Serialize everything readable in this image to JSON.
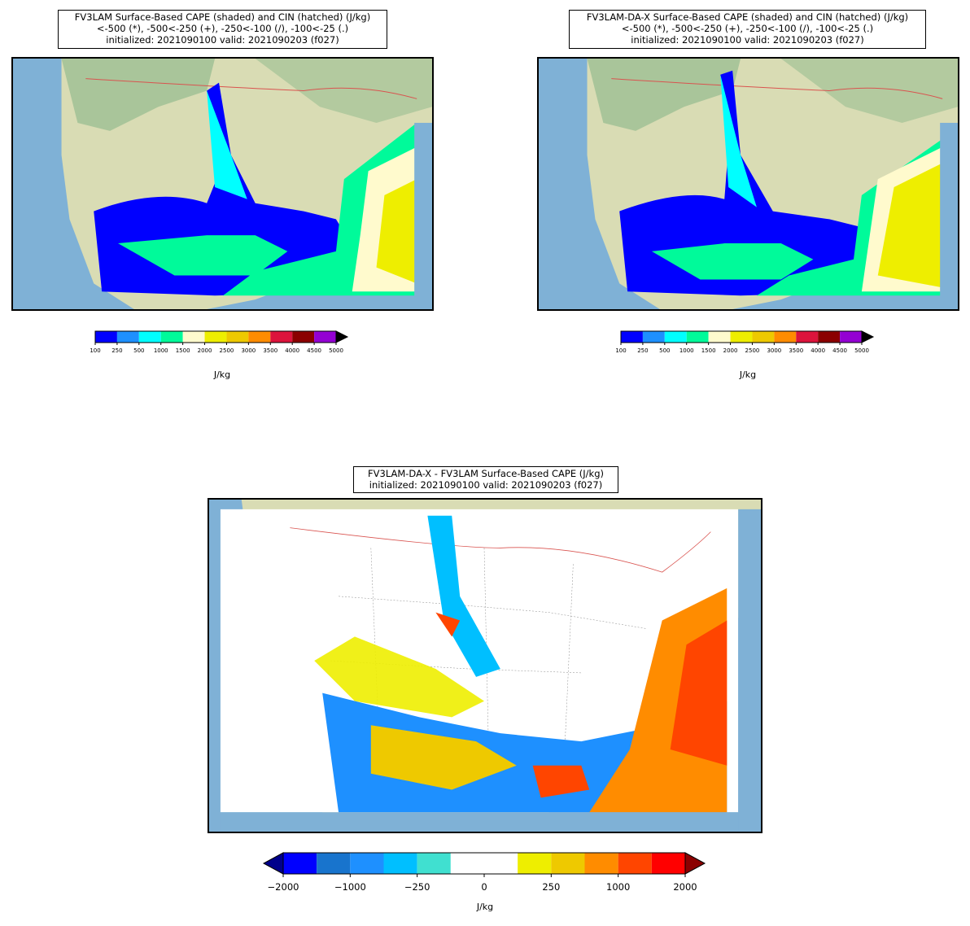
{
  "panels": {
    "left": {
      "title_lines": [
        "FV3LAM Surface-Based CAPE (shaded) and CIN (hatched) (J/kg)",
        "<-500 (*), -500<-250 (+), -250<-100 (/), -100<-25 (.)",
        "initialized: 2021090100 valid: 2021090203 (f027)"
      ],
      "colorbar": {
        "ticks": [
          "100",
          "250",
          "500",
          "1000",
          "1500",
          "2000",
          "2500",
          "3000",
          "3500",
          "4000",
          "4500",
          "5000"
        ],
        "colors": [
          "#0000ff",
          "#1e90ff",
          "#00ffff",
          "#00fa9a",
          "#fffacd",
          "#eeee00",
          "#eec900",
          "#ff8c00",
          "#dc143c",
          "#8b0000",
          "#9400d3"
        ],
        "extend_color": "#000000",
        "unit": "J/kg"
      }
    },
    "right": {
      "title_lines": [
        "FV3LAM-DA-X Surface-Based CAPE (shaded) and CIN (hatched) (J/kg)",
        "<-500 (*), -500<-250 (+), -250<-100 (/), -100<-25 (.)",
        "initialized: 2021090100 valid: 2021090203 (f027)"
      ],
      "colorbar": {
        "ticks": [
          "100",
          "250",
          "500",
          "1000",
          "1500",
          "2000",
          "2500",
          "3000",
          "3500",
          "4000",
          "4500",
          "5000"
        ],
        "colors": [
          "#0000ff",
          "#1e90ff",
          "#00ffff",
          "#00fa9a",
          "#fffacd",
          "#eeee00",
          "#eec900",
          "#ff8c00",
          "#dc143c",
          "#8b0000",
          "#9400d3"
        ],
        "extend_color": "#000000",
        "unit": "J/kg"
      }
    },
    "diff": {
      "title_lines": [
        "FV3LAM-DA-X - FV3LAM Surface-Based CAPE (J/kg)",
        "initialized: 2021090100 valid: 2021090203 (f027)"
      ],
      "colorbar": {
        "ticks": [
          "−2000",
          "−1000",
          "−250",
          "0",
          "250",
          "1000",
          "2000"
        ],
        "colors": [
          "#0000ff",
          "#1874cd",
          "#1e90ff",
          "#00bfff",
          "#40e0d0",
          "#ffffff",
          "#ffffff",
          "#eeee00",
          "#eec900",
          "#ff8c00",
          "#ff4500",
          "#ff0000"
        ],
        "extend_low_color": "#00008b",
        "extend_high_color": "#8b0000",
        "unit": "J/kg"
      }
    }
  },
  "map_colors": {
    "ocean": "#7fb1d6",
    "land": "#d9dcb4",
    "forest": "#a9c59a",
    "border": "#d9534f",
    "state_lines": "#555555"
  }
}
